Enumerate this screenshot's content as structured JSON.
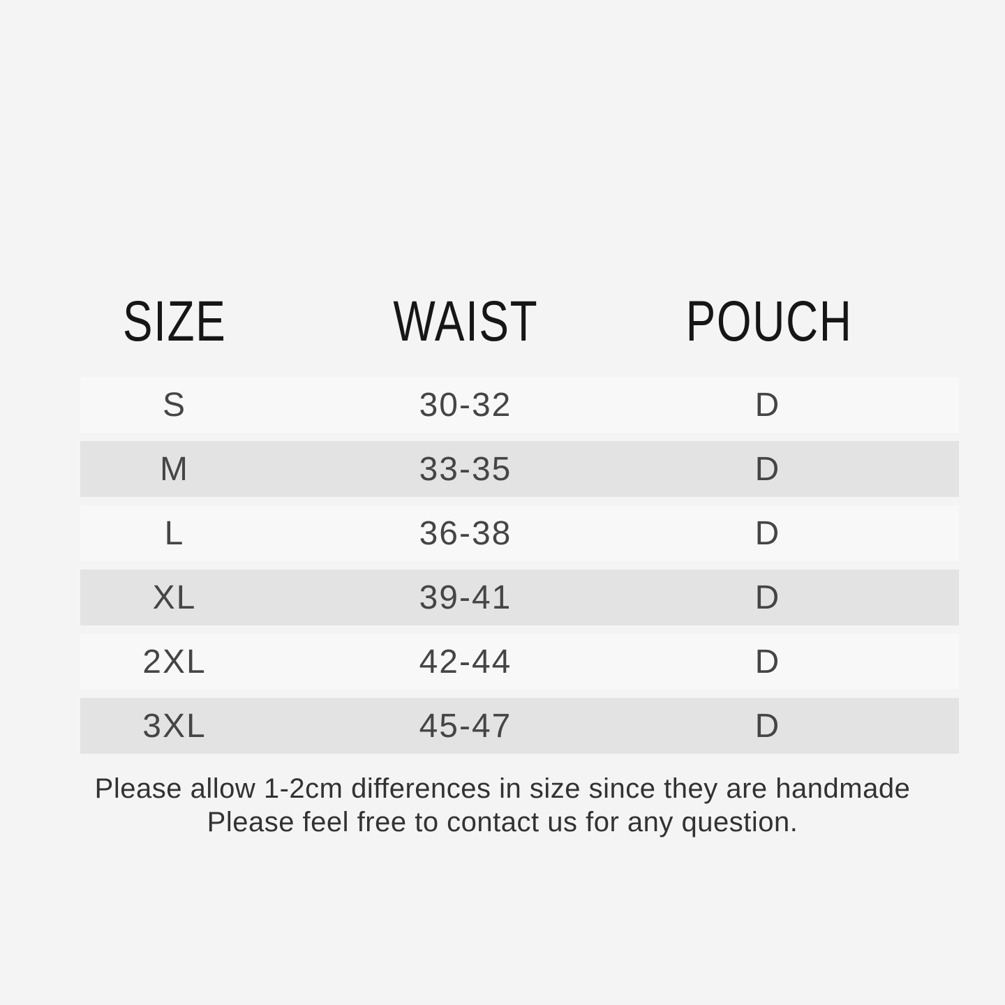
{
  "page": {
    "background_color": "#f4f4f5"
  },
  "colors": {
    "row_light": "#f8f8f9",
    "row_dark": "#e3e3e4",
    "header_text": "#161616",
    "row_text": "#454545",
    "note_text": "#323232"
  },
  "table": {
    "headers": {
      "size": "SIZE",
      "waist": "WAIST",
      "pouch": "POUCH"
    },
    "rows": [
      {
        "size": "S",
        "waist": "30-32",
        "pouch": "D"
      },
      {
        "size": "M",
        "waist": "33-35",
        "pouch": "D"
      },
      {
        "size": "L",
        "waist": "36-38",
        "pouch": "D"
      },
      {
        "size": "XL",
        "waist": "39-41",
        "pouch": "D"
      },
      {
        "size": "2XL",
        "waist": "42-44",
        "pouch": "D"
      },
      {
        "size": "3XL",
        "waist": "45-47",
        "pouch": "D"
      }
    ]
  },
  "footer": {
    "line1": "Please allow 1-2cm differences in size since they are handmade",
    "line2": "Please feel free to contact us for any question."
  },
  "chart_data": {
    "type": "table",
    "title": "",
    "columns": [
      "SIZE",
      "WAIST",
      "POUCH"
    ],
    "rows": [
      [
        "S",
        "30-32",
        "D"
      ],
      [
        "M",
        "33-35",
        "D"
      ],
      [
        "L",
        "36-38",
        "D"
      ],
      [
        "XL",
        "39-41",
        "D"
      ],
      [
        "2XL",
        "42-44",
        "D"
      ],
      [
        "3XL",
        "45-47",
        "D"
      ]
    ],
    "notes": [
      "Please allow 1-2cm differences in size since they are handmade",
      "Please feel free to contact us for any question."
    ],
    "layout_hints": {
      "zebra_striping": true,
      "striped_rows": [
        "M",
        "XL",
        "3XL"
      ],
      "header_style": "condensed uppercase, no background band"
    }
  }
}
